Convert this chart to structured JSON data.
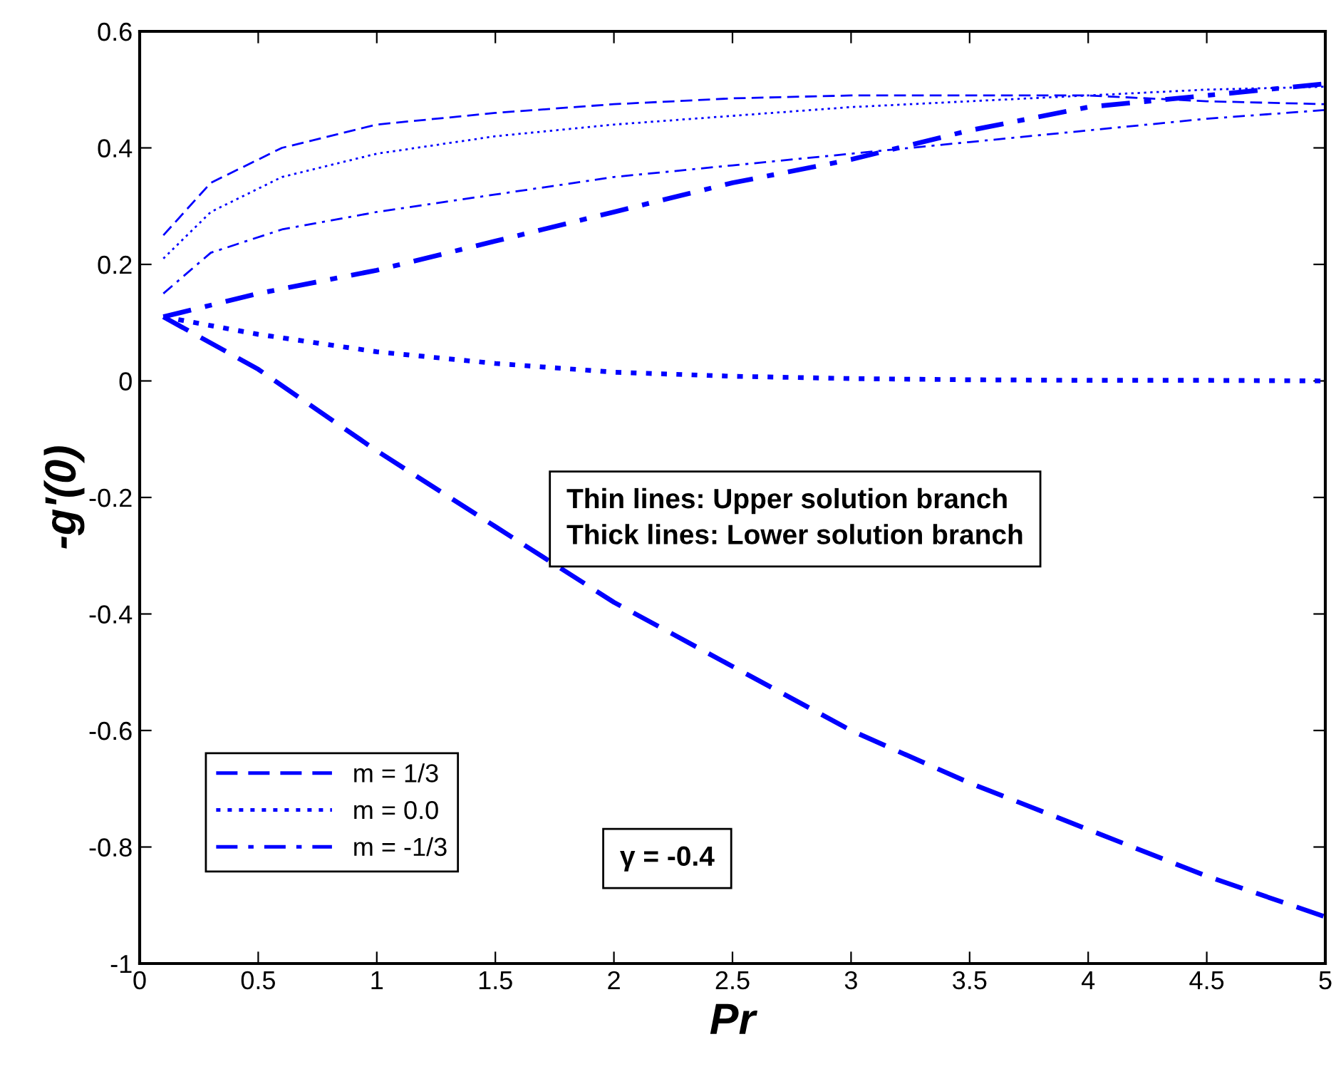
{
  "chart_data": {
    "type": "line",
    "xlabel": "Pr",
    "ylabel": "-g'(0)",
    "xlim": [
      0,
      5
    ],
    "ylim": [
      -1,
      0.6
    ],
    "xticks": [
      0,
      0.5,
      1,
      1.5,
      2,
      2.5,
      3,
      3.5,
      4,
      4.5,
      5
    ],
    "yticks": [
      -1,
      -0.8,
      -0.6,
      -0.4,
      -0.2,
      0,
      0.2,
      0.4,
      0.6
    ],
    "grid": false,
    "legend": "bottom left",
    "annotations": [
      "Thin lines: Upper solution branch\nThick lines: Lower solution branch",
      "γ = -0.4"
    ],
    "series": [
      {
        "name": "m = 1/3",
        "color": "#0000ff",
        "line_style": "dashed",
        "x": [
          0.1,
          0.3,
          0.6,
          1,
          1.5,
          2,
          2.5,
          3,
          3.5,
          4,
          4.5,
          5
        ],
        "values": [
          0.25,
          0.34,
          0.4,
          0.44,
          0.46,
          0.475,
          0.485,
          0.49,
          0.49,
          0.49,
          0.48,
          0.475
        ]
      },
      {
        "name": "m = 0.0",
        "color": "#0000ff",
        "line_style": "dotted",
        "x": [
          0.1,
          0.3,
          0.6,
          1,
          1.5,
          2,
          2.5,
          3,
          3.5,
          4,
          4.5,
          5
        ],
        "values": [
          0.21,
          0.29,
          0.35,
          0.39,
          0.42,
          0.44,
          0.455,
          0.47,
          0.48,
          0.49,
          0.5,
          0.505
        ]
      },
      {
        "name": "m = -1/3",
        "color": "#0000ff",
        "line_style": "dashdot",
        "x": [
          0.1,
          0.3,
          0.6,
          1,
          1.5,
          2,
          2.5,
          3,
          3.5,
          4,
          4.5,
          5
        ],
        "values": [
          0.15,
          0.22,
          0.26,
          0.29,
          0.32,
          0.35,
          0.37,
          0.39,
          0.41,
          0.43,
          0.45,
          0.465
        ]
      },
      {
        "color": "#0000ff",
        "line_style": "dashdot",
        "x": [
          0.1,
          0.5,
          1,
          1.5,
          2,
          2.5,
          3,
          3.5,
          4,
          4.5,
          5
        ],
        "values": [
          0.11,
          0.15,
          0.19,
          0.24,
          0.29,
          0.34,
          0.38,
          0.43,
          0.47,
          0.49,
          0.51
        ]
      },
      {
        "color": "#0000ff",
        "line_style": "dotted",
        "x": [
          0.1,
          0.5,
          1,
          1.5,
          2,
          2.5,
          3,
          3.5,
          4,
          4.5,
          5
        ],
        "values": [
          0.11,
          0.08,
          0.05,
          0.03,
          0.015,
          0.008,
          0.004,
          0.002,
          0.001,
          0.001,
          0.0
        ]
      },
      {
        "color": "#0000ff",
        "line_style": "dashed",
        "x": [
          0.1,
          0.5,
          1,
          1.5,
          2,
          2.5,
          3,
          3.5,
          4,
          4.5,
          5
        ],
        "values": [
          0.11,
          0.02,
          -0.12,
          -0.25,
          -0.38,
          -0.49,
          -0.6,
          -0.69,
          -0.77,
          -0.85,
          -0.92
        ]
      }
    ]
  }
}
